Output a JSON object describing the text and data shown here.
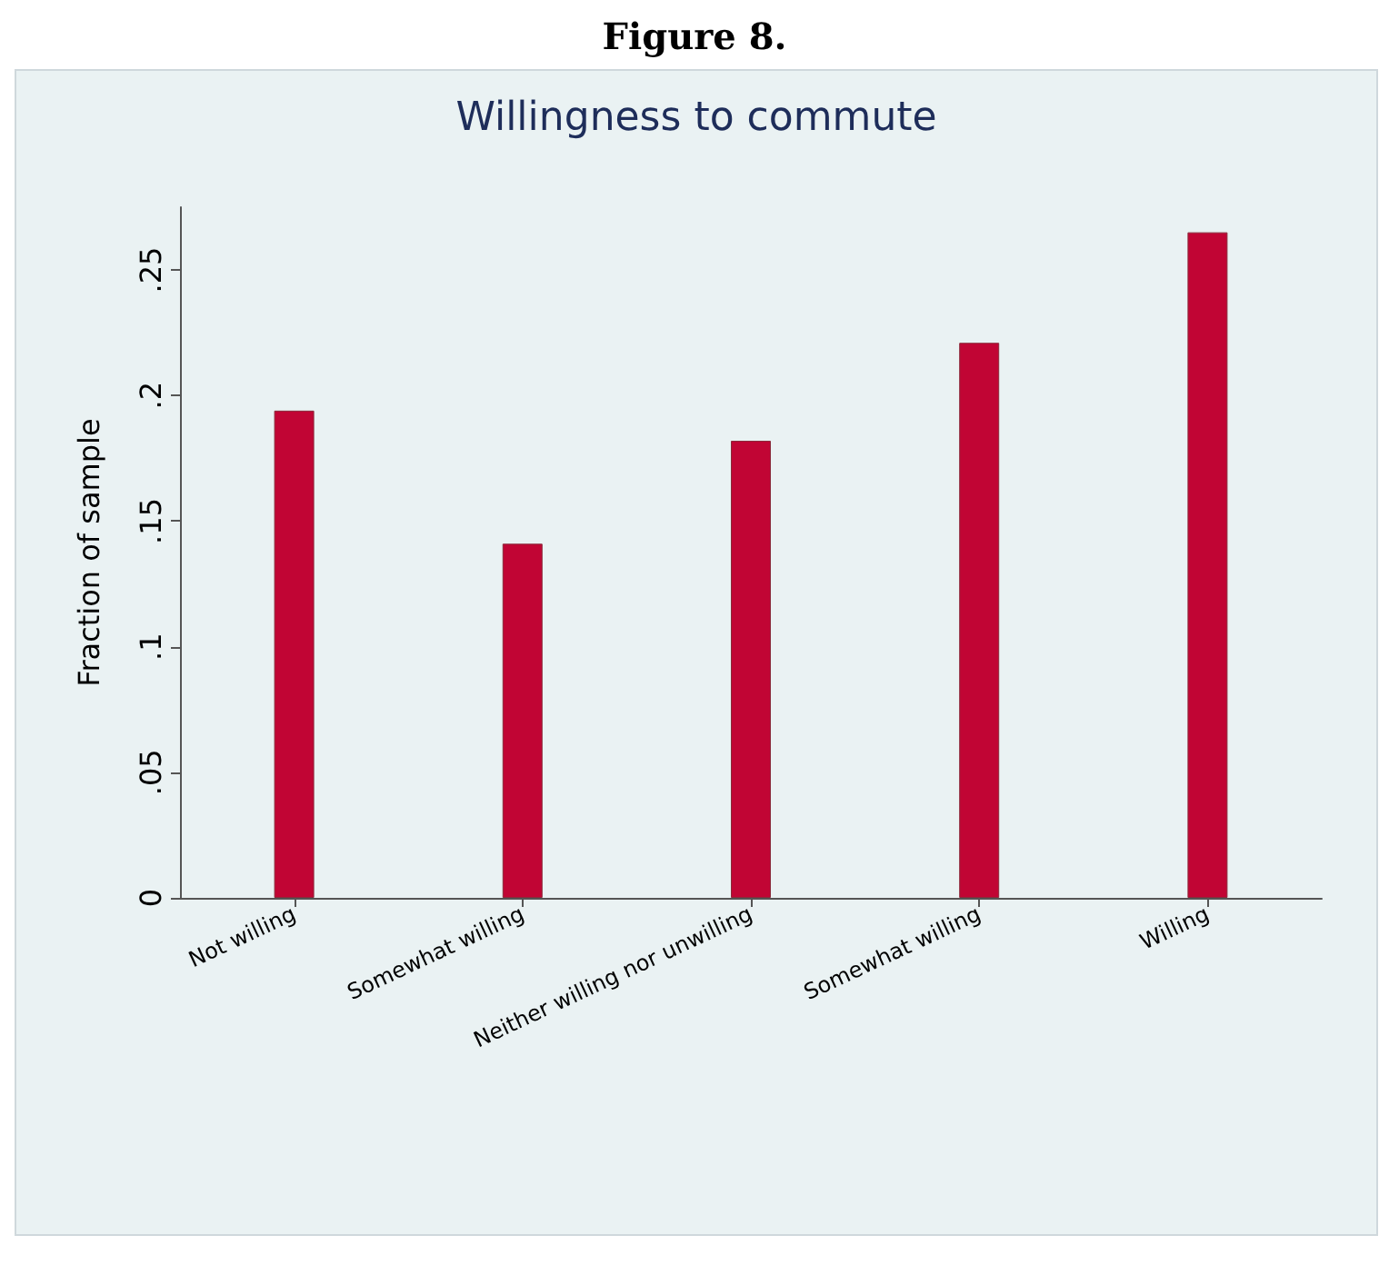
{
  "chart_data": {
    "type": "bar",
    "title": "Willingness to commute",
    "ylabel": "Fraction of sample",
    "annotations": [
      "Figure 8."
    ],
    "categories": [
      "Not willing",
      "Somewhat willing",
      "Neither willing nor unwilling",
      "Somewhat willing",
      "Willing"
    ],
    "values": [
      0.194,
      0.141,
      0.182,
      0.221,
      0.265
    ],
    "color": "#c10534",
    "ylim": [
      0,
      0.275
    ],
    "yticks": [
      0,
      {
        "value": 0.05,
        "label": ".05"
      },
      {
        "value": 0.1,
        "label": ".1"
      },
      {
        "value": 0.15,
        "label": ".15"
      },
      {
        "value": 0.2,
        "label": ".2"
      },
      {
        "value": 0.25,
        "label": ".25"
      }
    ],
    "grid": false
  }
}
